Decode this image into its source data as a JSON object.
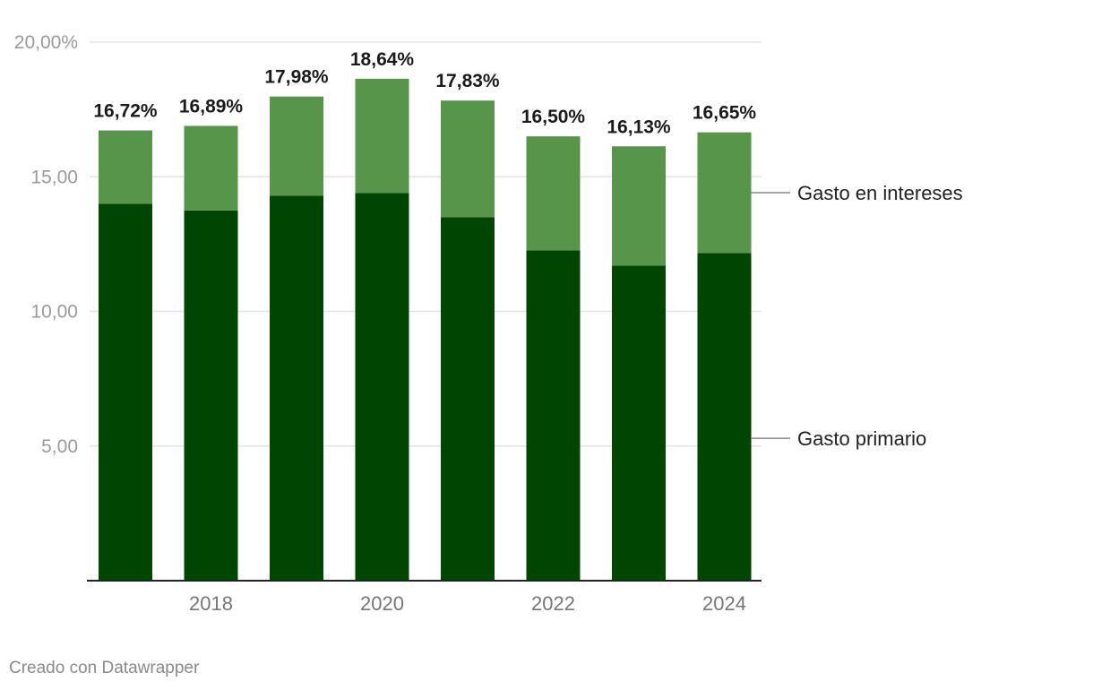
{
  "chart_data": {
    "type": "bar",
    "stacked": true,
    "categories": [
      "2017",
      "2018",
      "2019",
      "2020",
      "2021",
      "2022",
      "2023",
      "2024"
    ],
    "x_tick_labels": [
      "",
      "2018",
      "",
      "2020",
      "",
      "2022",
      "",
      "2024"
    ],
    "series": [
      {
        "name": "Gasto primario",
        "color": "#004600",
        "values": [
          14.0,
          13.75,
          14.3,
          14.4,
          13.5,
          12.27,
          11.7,
          12.17
        ]
      },
      {
        "name": "Gasto en intereses",
        "color": "#56954a",
        "values": [
          2.72,
          3.14,
          3.68,
          4.24,
          4.33,
          4.23,
          4.43,
          4.48
        ]
      }
    ],
    "total_labels": [
      "16,72%",
      "16,89%",
      "17,98%",
      "18,64%",
      "17,83%",
      "16,50%",
      "16,13%",
      "16,65%"
    ],
    "totals": [
      16.72,
      16.89,
      17.98,
      18.64,
      17.83,
      16.5,
      16.13,
      16.65
    ],
    "y_ticks": [
      5,
      10,
      15,
      20
    ],
    "y_tick_labels": [
      "5,00",
      "10,00",
      "15,00",
      "20,00%"
    ],
    "ylim": [
      0,
      20
    ],
    "grid": true,
    "legend_placement": "right, labels attached to bars",
    "title": "",
    "xlabel": "",
    "ylabel": ""
  },
  "footer": {
    "credit": "Creado con Datawrapper"
  }
}
